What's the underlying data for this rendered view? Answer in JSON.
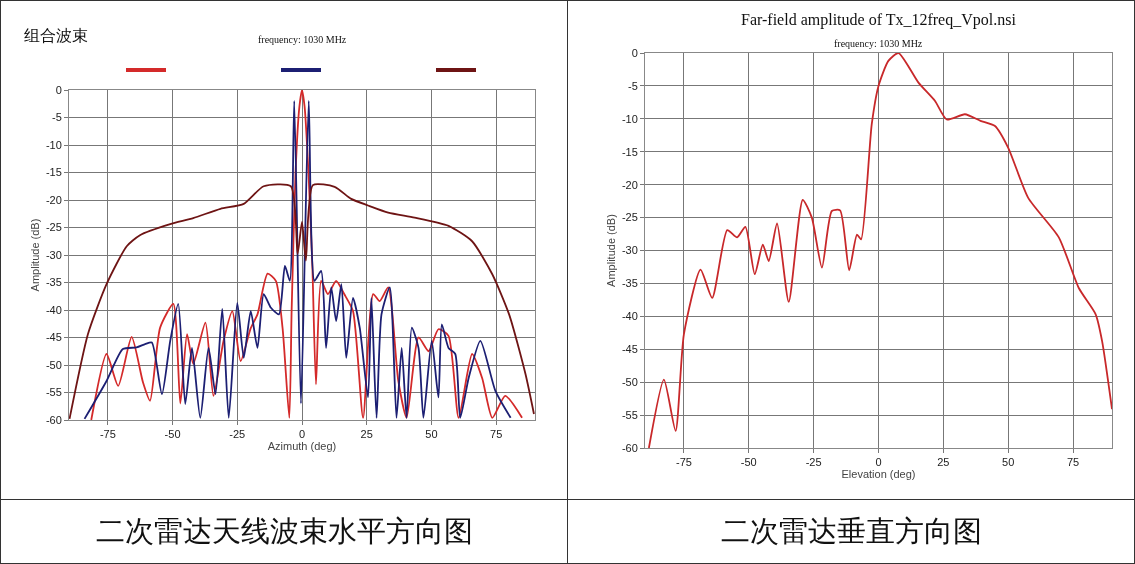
{
  "chart_data": [
    {
      "type": "line",
      "title": "组合波束",
      "subtitle": "frequency: 1030 MHz",
      "xlabel": "Azimuth (deg)",
      "ylabel": "Amplitude (dB)",
      "xlim": [
        -90,
        90
      ],
      "xticks": [
        -75,
        -50,
        -25,
        0,
        25,
        50,
        75
      ],
      "ylim": [
        -60,
        0
      ],
      "yticks": [
        0,
        -5,
        -10,
        -15,
        -20,
        -25,
        -30,
        -35,
        -40,
        -45,
        -50,
        -55,
        -60
      ],
      "grid": true,
      "line_style": "solid",
      "marker": "none",
      "annotations": [
        "二次雷达天线波束水平方向图"
      ],
      "series": [
        {
          "color": "#d42a2a",
          "x": [
            -81.4,
            -75.5,
            -71,
            -65.8,
            -61.4,
            -58.7,
            -54.8,
            -49.7,
            -47,
            -44.4,
            -42,
            -37.3,
            -34.2,
            -30.3,
            -26.9,
            -23.7,
            -19.8,
            -17.2,
            -13.3,
            -10.1,
            -7.5,
            -4.9,
            -4,
            -2.5,
            -1,
            0,
            1,
            2.5,
            4,
            5.4,
            7.4,
            10,
            13.2,
            16.3,
            19.7,
            23.6,
            27.5,
            30,
            33.3,
            37.2,
            40.4,
            45,
            48.9,
            52.7,
            56.6,
            60.5,
            65.7,
            69.6,
            73.5,
            78.5,
            85
          ],
          "values": [
            -60,
            -48,
            -53.8,
            -44.9,
            -53.2,
            -56.5,
            -43.2,
            -38.9,
            -57,
            -44.4,
            -49.8,
            -42.3,
            -55.6,
            -45.6,
            -40.2,
            -49.3,
            -43.3,
            -40.8,
            -33.4,
            -34.7,
            -43.3,
            -59.6,
            -40,
            -15,
            -3,
            0,
            -3,
            -15,
            -32,
            -53.5,
            -34.7,
            -37.1,
            -34.7,
            -37.1,
            -40.2,
            -59.6,
            -37.1,
            -38.4,
            -35.9,
            -52.9,
            -59.6,
            -45,
            -47.5,
            -43.5,
            -44.7,
            -59.6,
            -48,
            -52.4,
            -59.6,
            -55.6,
            -59.6
          ]
        },
        {
          "color": "#1c1f73",
          "x": [
            -84,
            -75.5,
            -69.2,
            -63.9,
            -60.6,
            -58,
            -54.1,
            -50.9,
            -47.8,
            -45.1,
            -42.5,
            -39.3,
            -36.1,
            -33.4,
            -30.8,
            -28.3,
            -25,
            -22.5,
            -19.8,
            -17.2,
            -14.8,
            -12,
            -8.9,
            -6.6,
            -4.7,
            -3,
            -0.4,
            2.6,
            4.8,
            7.4,
            9.3,
            11.3,
            13.2,
            15.2,
            17.1,
            19.7,
            22.3,
            25.5,
            26.8,
            28.8,
            30.7,
            33.9,
            36.5,
            38.5,
            40.4,
            42.4,
            45,
            46.9,
            50.1,
            52.7,
            54,
            56.6,
            59.2,
            61.1,
            64.4,
            68.9,
            74.7,
            80.6
          ],
          "values": [
            -59.8,
            -52.9,
            -47.1,
            -46.8,
            -46.2,
            -45.9,
            -55.3,
            -45.6,
            -38.9,
            -57.1,
            -46.9,
            -59.6,
            -46.9,
            -55.3,
            -39.8,
            -59.6,
            -38.7,
            -48.7,
            -40.2,
            -46.9,
            -37.1,
            -39.6,
            -40.8,
            -32,
            -34.7,
            -2,
            -57,
            -2,
            -34.7,
            -32.9,
            -46.9,
            -35.9,
            -42,
            -35.3,
            -48.7,
            -37.8,
            -43.2,
            -55.9,
            -37.8,
            -59.6,
            -40.8,
            -35.9,
            -59.6,
            -46.9,
            -59.6,
            -43.2,
            -46.9,
            -59.6,
            -45.6,
            -55.9,
            -42.6,
            -46.9,
            -48,
            -59.6,
            -52.3,
            -45.6,
            -54.7,
            -59.6
          ]
        },
        {
          "color": "#6e1414",
          "x": [
            -89.8,
            -82.7,
            -75.5,
            -67.7,
            -62.6,
            -50.9,
            -42,
            -31.5,
            -22.5,
            -14.8,
            -4.3,
            -1.7,
            0,
            1.5,
            4.2,
            12.6,
            19,
            25.5,
            33.3,
            43.5,
            56.6,
            65.7,
            73.5,
            80,
            86.3,
            89.6
          ],
          "values": [
            -59.8,
            -44.4,
            -35.3,
            -28.4,
            -26.4,
            -24.4,
            -23.3,
            -21.6,
            -20.7,
            -17.5,
            -17.5,
            -29.8,
            -24,
            -31,
            -17.3,
            -17.6,
            -19.8,
            -21,
            -22.3,
            -23.2,
            -24.7,
            -27.5,
            -33.5,
            -40.8,
            -51.6,
            -58.9
          ]
        }
      ]
    },
    {
      "type": "line",
      "title": "Far-field amplitude of Tx_12freq_Vpol.nsi",
      "subtitle": "frequency: 1030 MHz",
      "xlabel": "Elevation (deg)",
      "ylabel": "Amplitude (dB)",
      "xlim": [
        -90,
        90
      ],
      "xticks": [
        -75,
        -50,
        -25,
        0,
        25,
        50,
        75
      ],
      "ylim": [
        -60,
        0
      ],
      "yticks": [
        0,
        -5,
        -10,
        -15,
        -20,
        -25,
        -30,
        -35,
        -40,
        -45,
        -50,
        -55,
        -60
      ],
      "grid": true,
      "line_style": "solid",
      "marker": "none",
      "annotations": [
        "二次雷达垂直方向图"
      ],
      "series": [
        {
          "color": "#c8282a",
          "x": [
            -88.5,
            -82.7,
            -78.2,
            -75,
            -68.6,
            -64.1,
            -58.3,
            -54.5,
            -51.3,
            -47.7,
            -44.6,
            -42.3,
            -39.1,
            -34.6,
            -29.2,
            -25.7,
            -21.8,
            -18,
            -14.8,
            -11.3,
            -8.3,
            -6.7,
            -2.6,
            0,
            3.8,
            7.7,
            15.4,
            21.8,
            26.3,
            33.3,
            39.3,
            44.9,
            50,
            57.7,
            69.5,
            77.2,
            83.7,
            86.2,
            90
          ],
          "values": [
            -60,
            -49.6,
            -57.4,
            -42.7,
            -32.9,
            -37.2,
            -26.9,
            -28,
            -26.4,
            -33.6,
            -29.1,
            -31.6,
            -25.9,
            -37.8,
            -22.3,
            -25,
            -32.6,
            -24,
            -23.9,
            -33,
            -27.6,
            -28.3,
            -10.8,
            -5,
            -1.2,
            0,
            -4.5,
            -7.3,
            -10.1,
            -9.3,
            -10.3,
            -11.1,
            -14.4,
            -22,
            -28,
            -35.7,
            -39.7,
            -43.8,
            -54.1
          ]
        }
      ]
    }
  ]
}
